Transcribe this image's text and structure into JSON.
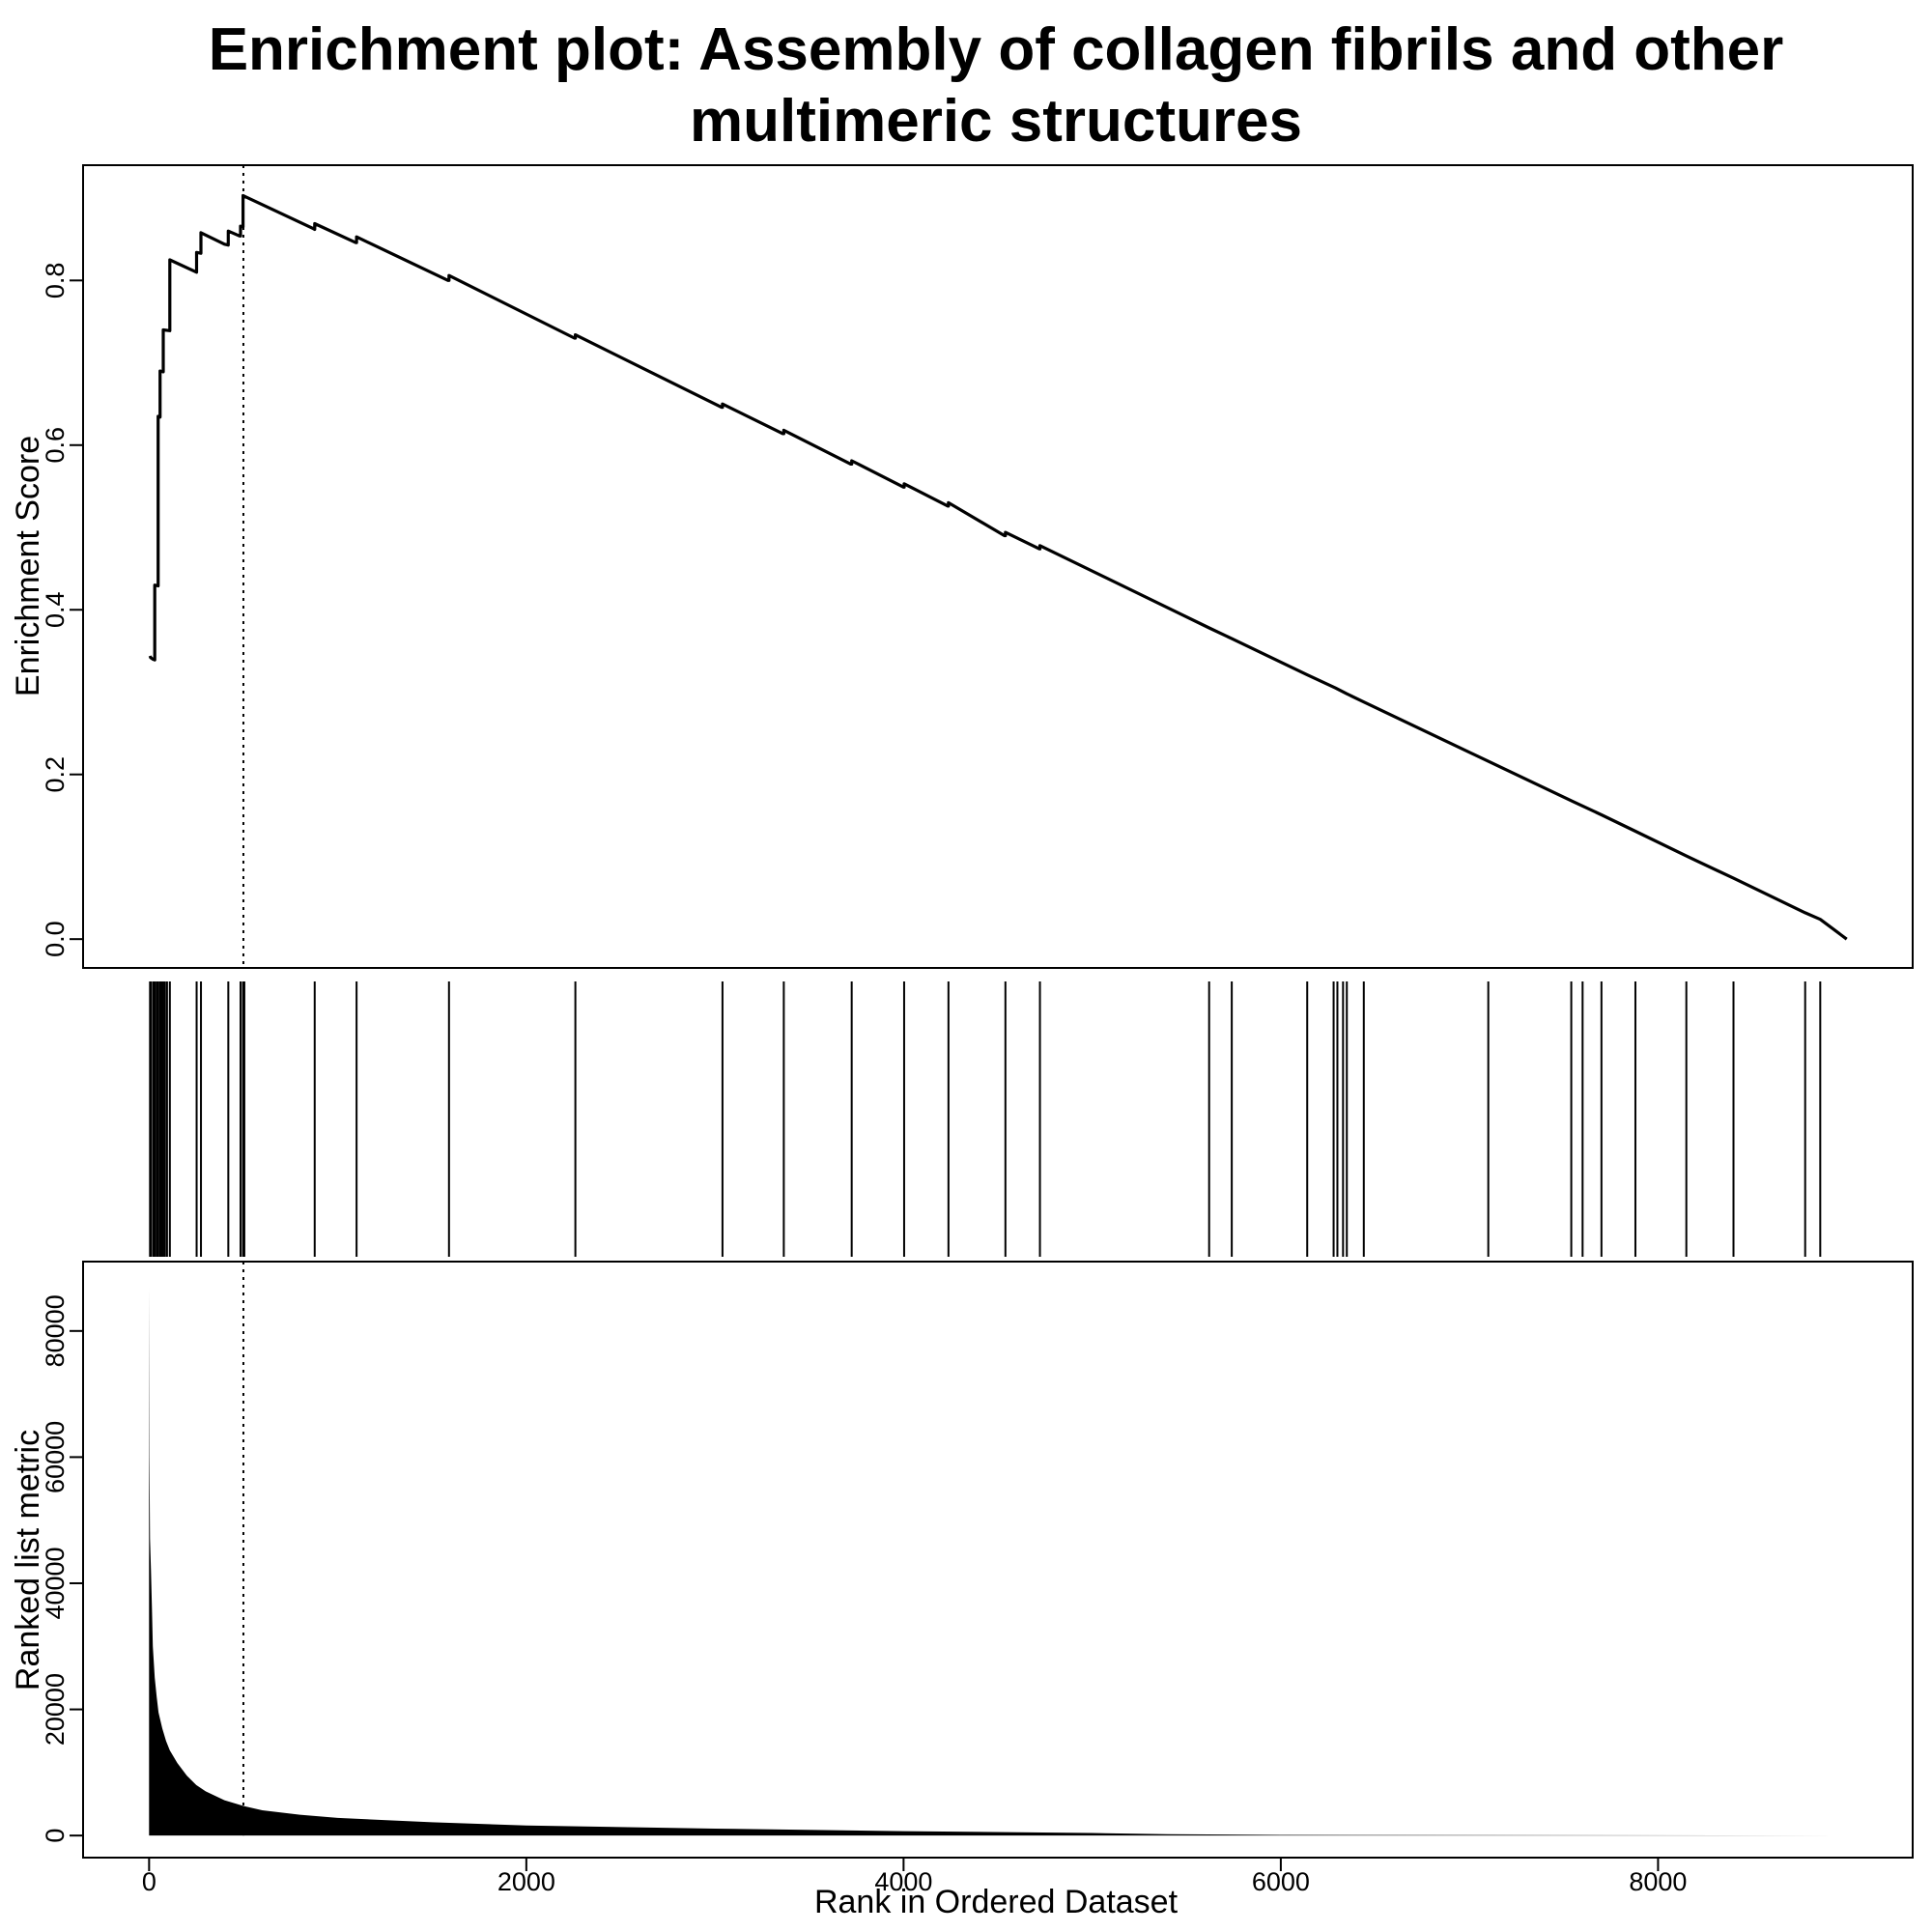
{
  "chart_data": {
    "type": "line",
    "title": {
      "line1": "Enrichment plot: Assembly of collagen fibrils and other",
      "line2": "multimeric structures"
    },
    "xlabel": "Rank in Ordered Dataset",
    "xlim": [
      -350,
      9350
    ],
    "x_ticks": [
      0,
      2000,
      4000,
      6000,
      8000
    ],
    "x_tick_labels": [
      "0",
      "2000",
      "4000",
      "6000",
      "8000"
    ],
    "peak_rank": 500,
    "panels": {
      "enrichment": {
        "ylabel": "Enrichment Score",
        "ylim": [
          -0.035,
          0.94
        ],
        "y_ticks": [
          0.0,
          0.2,
          0.4,
          0.6,
          0.8
        ],
        "y_tick_labels": [
          "0.0",
          "0.2",
          "0.4",
          "0.6",
          "0.8"
        ],
        "series": [
          {
            "points": [
              [
                5,
                0.344
              ],
              [
                8,
                0.342
              ],
              [
                20,
                0.34
              ],
              [
                30,
                0.339
              ],
              [
                30,
                0.43
              ],
              [
                48,
                0.429
              ],
              [
                48,
                0.635
              ],
              [
                58,
                0.634
              ],
              [
                58,
                0.69
              ],
              [
                75,
                0.689
              ],
              [
                75,
                0.74
              ],
              [
                110,
                0.739
              ],
              [
                110,
                0.825
              ],
              [
                252,
                0.81
              ],
              [
                252,
                0.834
              ],
              [
                275,
                0.833
              ],
              [
                275,
                0.858
              ],
              [
                400,
                0.844
              ],
              [
                420,
                0.843
              ],
              [
                420,
                0.86
              ],
              [
                480,
                0.854
              ],
              [
                485,
                0.854
              ],
              [
                485,
                0.866
              ],
              [
                498,
                0.865
              ],
              [
                498,
                0.903
              ],
              [
                870,
                0.863
              ],
              [
                878,
                0.862
              ],
              [
                878,
                0.869
              ],
              [
                1095,
                0.846
              ],
              [
                1100,
                0.846
              ],
              [
                1100,
                0.853
              ],
              [
                1585,
                0.8
              ],
              [
                1590,
                0.8
              ],
              [
                1590,
                0.806
              ],
              [
                2255,
                0.73
              ],
              [
                2260,
                0.73
              ],
              [
                2260,
                0.734
              ],
              [
                3035,
                0.646
              ],
              [
                3040,
                0.646
              ],
              [
                3040,
                0.65
              ],
              [
                3360,
                0.614
              ],
              [
                3365,
                0.614
              ],
              [
                3365,
                0.618
              ],
              [
                3720,
                0.577
              ],
              [
                3725,
                0.577
              ],
              [
                3725,
                0.581
              ],
              [
                4000,
                0.549
              ],
              [
                4003,
                0.549
              ],
              [
                4003,
                0.553
              ],
              [
                4235,
                0.526
              ],
              [
                4238,
                0.526
              ],
              [
                4238,
                0.53
              ],
              [
                4535,
                0.49
              ],
              [
                4540,
                0.49
              ],
              [
                4540,
                0.494
              ],
              [
                4720,
                0.474
              ],
              [
                4723,
                0.474
              ],
              [
                4723,
                0.478
              ],
              [
                5620,
                0.378
              ],
              [
                5740,
                0.365
              ],
              [
                6140,
                0.321
              ],
              [
                6290,
                0.305
              ],
              [
                6350,
                0.298
              ],
              [
                6440,
                0.288
              ],
              [
                7100,
                0.216
              ],
              [
                7550,
                0.167
              ],
              [
                7700,
                0.151
              ],
              [
                7880,
                0.131
              ],
              [
                8150,
                0.101
              ],
              [
                8400,
                0.074
              ],
              [
                8780,
                0.032
              ],
              [
                8860,
                0.024
              ],
              [
                9000,
                0.0
              ]
            ]
          }
        ]
      },
      "hits": {
        "ranks": [
          5,
          10,
          22,
          30,
          40,
          48,
          58,
          66,
          75,
          84,
          95,
          110,
          252,
          275,
          420,
          485,
          498,
          505,
          878,
          1100,
          1590,
          2260,
          3040,
          3365,
          3725,
          4003,
          4238,
          4540,
          4723,
          5620,
          5740,
          6140,
          6280,
          6300,
          6330,
          6350,
          6440,
          7100,
          7540,
          7600,
          7700,
          7880,
          8150,
          8400,
          8780,
          8860
        ]
      },
      "metric": {
        "ylabel": "Ranked list metric",
        "ylim": [
          -3500,
          91000
        ],
        "y_ticks": [
          0,
          20000,
          40000,
          60000,
          80000
        ],
        "y_tick_labels": [
          "0",
          "20000",
          "40000",
          "60000",
          "80000"
        ],
        "series": [
          {
            "points": [
              [
                0,
                87000
              ],
              [
                2,
                60000
              ],
              [
                5,
                47000
              ],
              [
                10,
                42000
              ],
              [
                15,
                36000
              ],
              [
                20,
                30000
              ],
              [
                30,
                25000
              ],
              [
                40,
                22000
              ],
              [
                50,
                19500
              ],
              [
                70,
                17000
              ],
              [
                90,
                15000
              ],
              [
                110,
                13500
              ],
              [
                150,
                11500
              ],
              [
                200,
                9500
              ],
              [
                250,
                8000
              ],
              [
                300,
                7000
              ],
              [
                400,
                5600
              ],
              [
                500,
                4700
              ],
              [
                600,
                4000
              ],
              [
                800,
                3300
              ],
              [
                1000,
                2800
              ],
              [
                1500,
                2100
              ],
              [
                2000,
                1600
              ],
              [
                3000,
                1100
              ],
              [
                4000,
                700
              ],
              [
                5000,
                400
              ],
              [
                5400,
                200
              ],
              [
                6000,
                100
              ],
              [
                9000,
                0
              ]
            ]
          }
        ]
      }
    }
  }
}
